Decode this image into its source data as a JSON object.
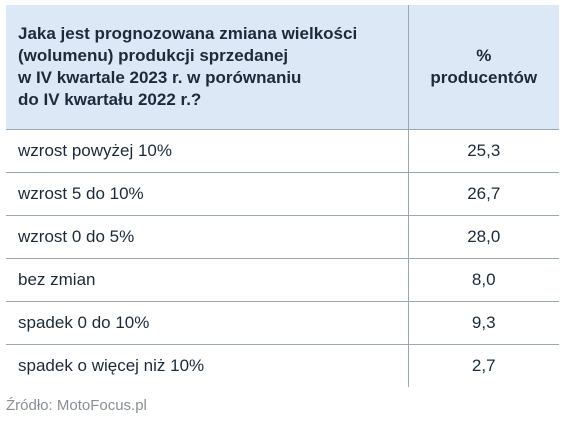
{
  "table": {
    "header": {
      "question_lines": [
        "Jaka jest prognozowana zmiana wielkości",
        "(wolumenu) produkcji sprzedanej",
        "w IV kwartale 2023 r. w porównaniu",
        "do IV kwartału 2022 r.?"
      ],
      "value_lines": [
        "%",
        "producentów"
      ]
    },
    "rows": [
      {
        "label": "wzrost powyżej 10%",
        "value": "25,3"
      },
      {
        "label": "wzrost 5 do 10%",
        "value": "26,7"
      },
      {
        "label": "wzrost 0 do 5%",
        "value": "28,0"
      },
      {
        "label": "bez zmian",
        "value": "8,0"
      },
      {
        "label": "spadek 0 do 10%",
        "value": "9,3"
      },
      {
        "label": "spadek o więcej niż 10%",
        "value": "2,7"
      }
    ]
  },
  "source": "Źródło: MotoFocus.pl",
  "colors": {
    "header_bg": "#dde8f6",
    "text": "#1c2a3a",
    "border": "#9aa7b5",
    "source_text": "#8a8f96"
  }
}
